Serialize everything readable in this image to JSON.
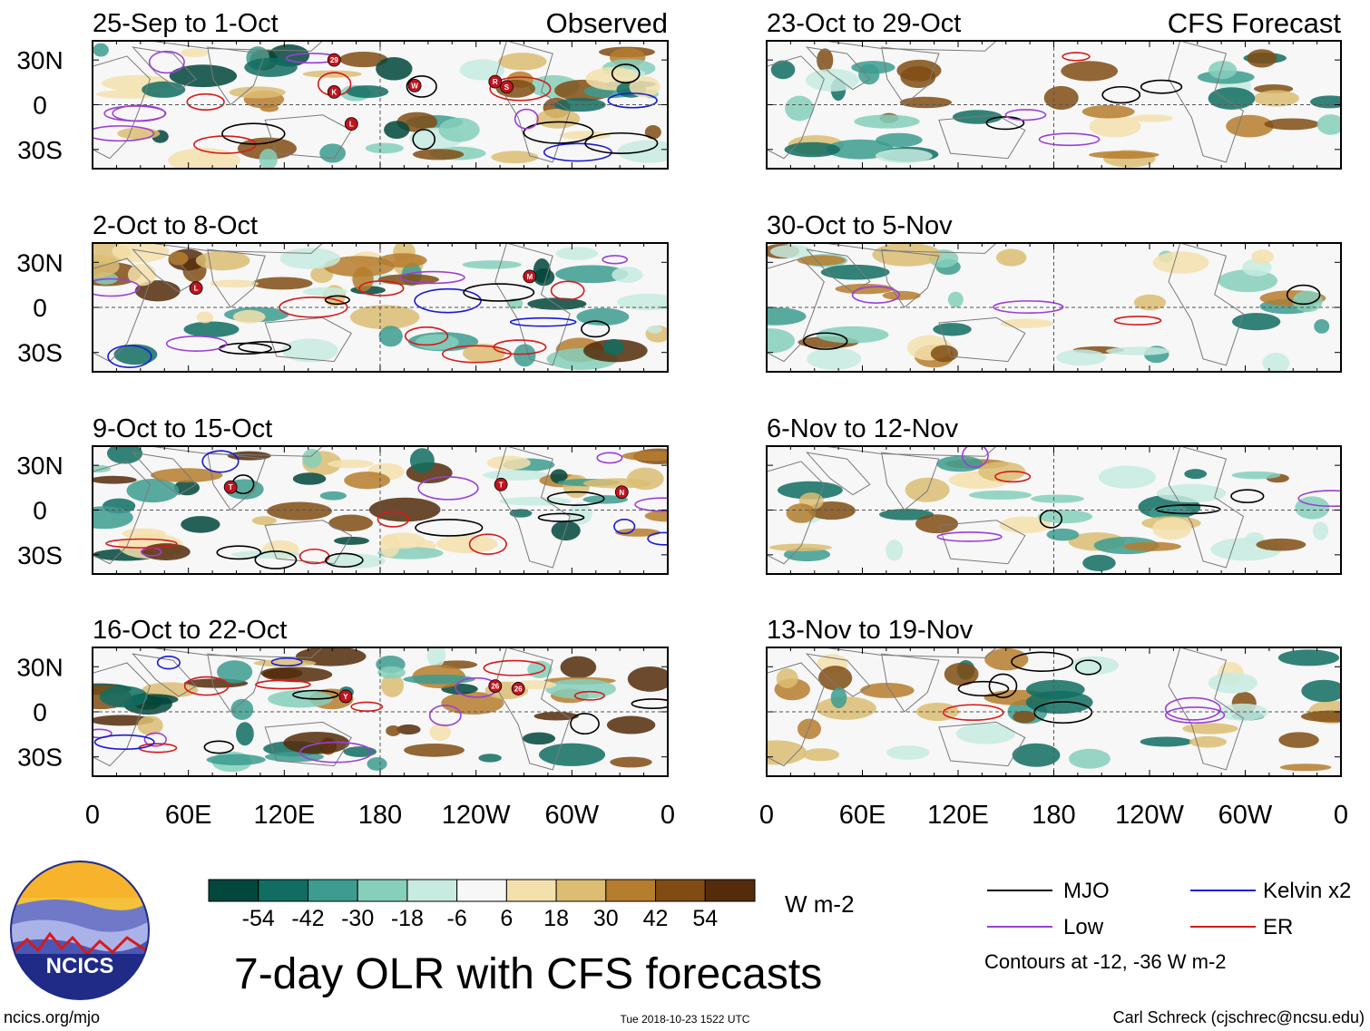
{
  "figure": {
    "title": "7-day OLR with CFS forecasts",
    "footer_left": "ncics.org/mjo",
    "footer_center": "Tue 2018-10-23 1522 UTC",
    "footer_right": "Carl Schreck (cjschrec@ncsu.edu)"
  },
  "logo": {
    "text": "NCICS"
  },
  "observed_label": "Observed",
  "forecast_label": "CFS Forecast",
  "panels_left": [
    {
      "period": "25-Sep to 1-Oct"
    },
    {
      "period": "2-Oct to 8-Oct"
    },
    {
      "period": "9-Oct to 15-Oct"
    },
    {
      "period": "16-Oct to 22-Oct"
    }
  ],
  "panels_right": [
    {
      "period": "23-Oct to 29-Oct"
    },
    {
      "period": "30-Oct to 5-Nov"
    },
    {
      "period": "6-Nov to 12-Nov"
    },
    {
      "period": "13-Nov to 19-Nov"
    }
  ],
  "lat_labels": [
    "30N",
    "0",
    "30S"
  ],
  "lon_labels": [
    "0",
    "60E",
    "120E",
    "180",
    "120W",
    "60W",
    "0"
  ],
  "colorbar": {
    "units": "W m-2",
    "ticks": [
      "-54",
      "-42",
      "-30",
      "-18",
      "-6",
      "6",
      "18",
      "30",
      "42",
      "54"
    ],
    "colors": [
      "#01473b",
      "#116d61",
      "#3c9c8f",
      "#85cfbb",
      "#c7ebe0",
      "#f7f7f7",
      "#f4e0ad",
      "#dcbd72",
      "#b67d2e",
      "#804c13",
      "#542c0b"
    ]
  },
  "legend": {
    "items": [
      {
        "label": "MJO",
        "color": "#000000"
      },
      {
        "label": "Kelvin x2",
        "color": "#1a1ad6"
      },
      {
        "label": "Low",
        "color": "#9b3fd6"
      },
      {
        "label": "ER",
        "color": "#d61a1a"
      }
    ],
    "contour_note": "Contours at -12, -36 W m-2"
  },
  "storm_markers": [
    {
      "panel": 0,
      "labels": [
        "29",
        "K",
        "W",
        "R",
        "S",
        "L"
      ]
    },
    {
      "panel": 1,
      "labels": [
        "L",
        "M"
      ]
    },
    {
      "panel": 2,
      "labels": [
        "T",
        "T",
        "N"
      ]
    },
    {
      "panel": 3,
      "labels": [
        "Y",
        "26",
        "26"
      ]
    }
  ]
}
